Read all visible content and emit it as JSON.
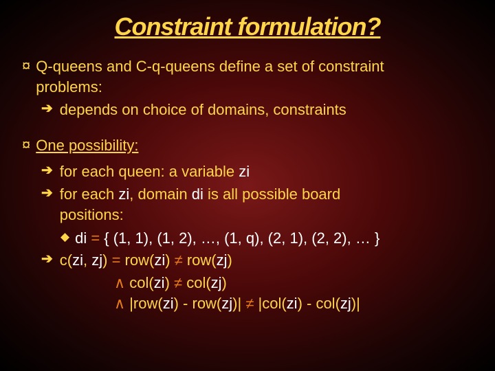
{
  "title": "Constraint formulation?",
  "bullet1": {
    "line1": "Q-queens and C-q-queens define a set of constraint",
    "line2": "problems:",
    "sub": "depends on choice of domains, constraints"
  },
  "bullet2": {
    "text": "One possibility:"
  },
  "box": {
    "l1a": "for each queen: a variable ",
    "l1b": "zi",
    "l2a": "for each ",
    "l2b": "zi",
    "l2c": ", domain ",
    "l2d": "di",
    "l2e": " is all possible board",
    "l3": "positions:",
    "l4a": "di",
    "l4b": " = ",
    "l4c": "{ (1, 1), (1, 2), …, (1, q), (2, 1), (2, 2), … }",
    "l5a": "c(",
    "l5b": "zi",
    "l5c": ", ",
    "l5d": "zj",
    "l5e": ") ",
    "l5f": "=",
    "l5g": "   row(",
    "l5h": "zi",
    "l5i": ") ",
    "l5j": "≠",
    "l5k": " row(",
    "l5l": "zj",
    "l5m": ")",
    "l6a": "∧",
    "l6b": " col(",
    "l6c": "zi",
    "l6d": ") ",
    "l6e": "≠",
    "l6f": " col(",
    "l6g": "zj",
    "l6h": ")",
    "l7a": "∧",
    "l7b": " |row(",
    "l7c": "zi",
    "l7d": ") - row(",
    "l7e": "zj",
    "l7f": ")| ",
    "l7g": "≠",
    "l7h": " |col(",
    "l7i": "zi",
    "l7j": ") - col(",
    "l7k": "zj",
    "l7l": ")|"
  },
  "glyphs": {
    "disc": "¤",
    "arrow": "➔",
    "diamond": "◆"
  }
}
